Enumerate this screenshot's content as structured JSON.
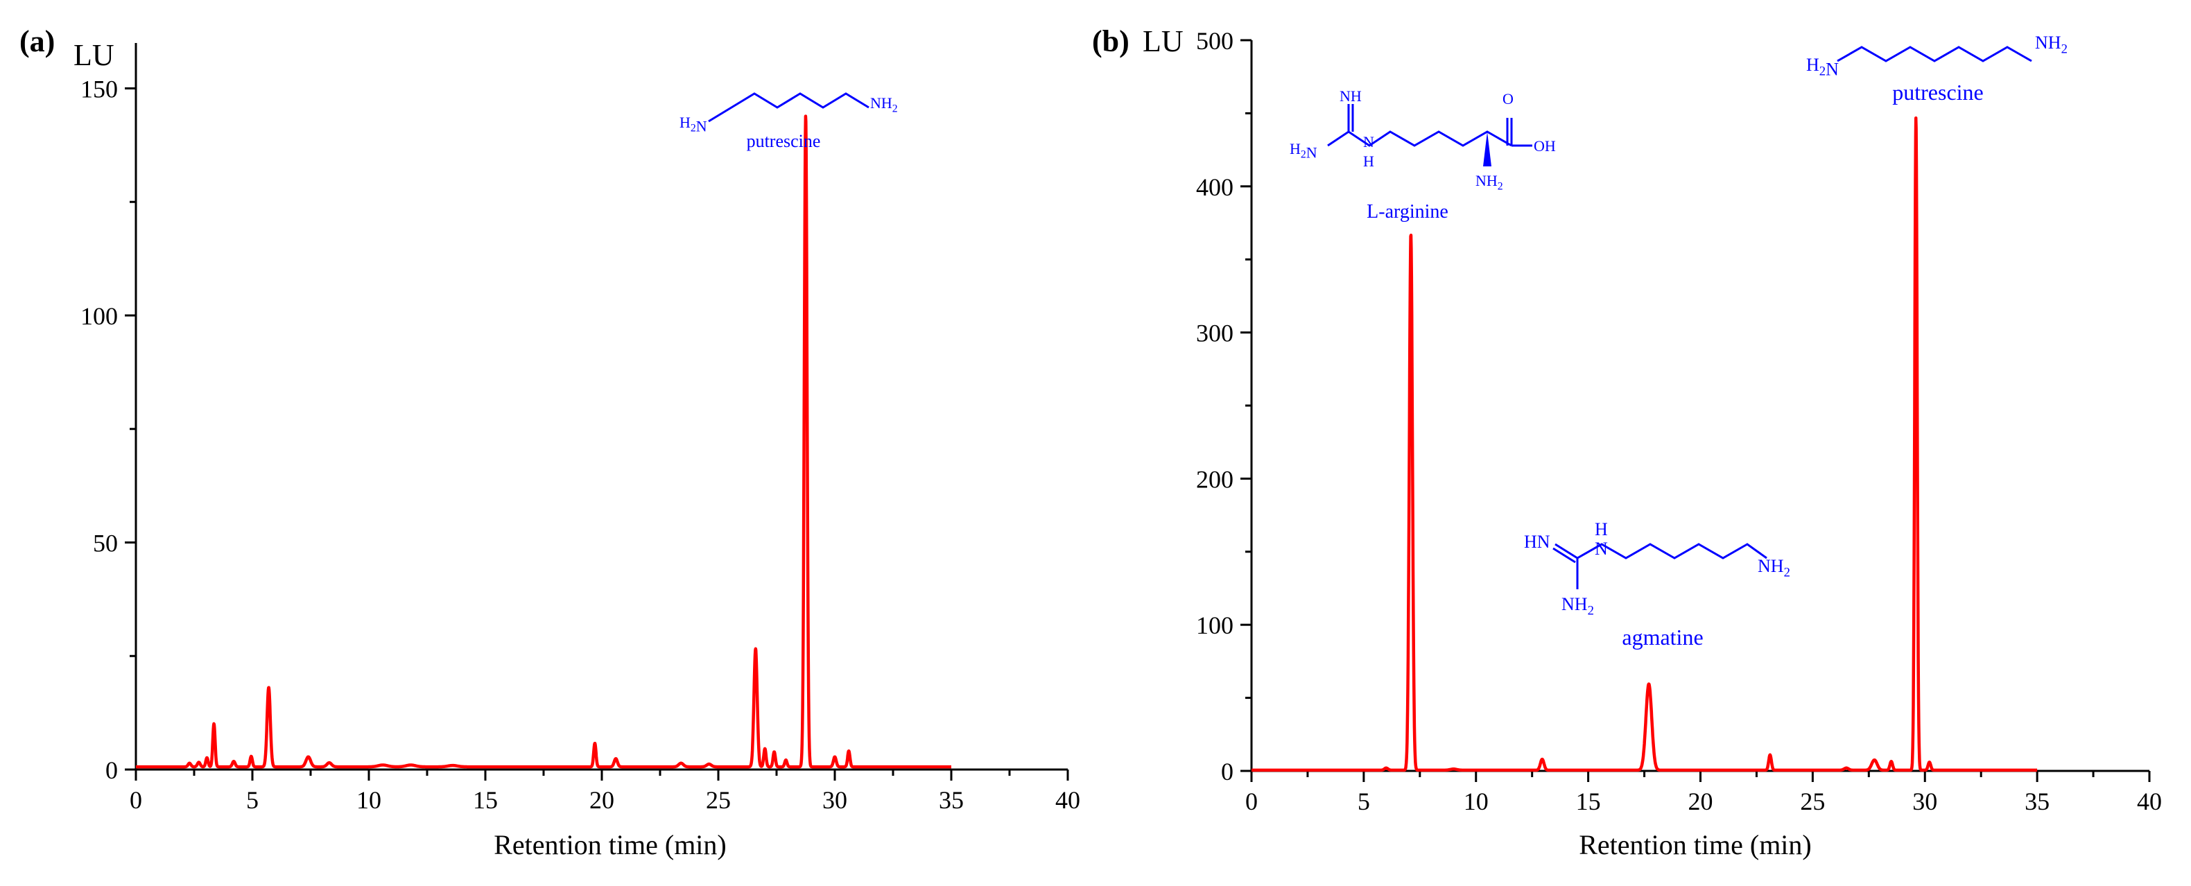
{
  "chart_data": [
    {
      "type": "line",
      "panel_label": "(a)",
      "y_unit": "LU",
      "xlabel": "Retention time (min)",
      "xlim": [
        0,
        40
      ],
      "ylim": [
        0,
        160
      ],
      "x_ticks": [
        0,
        5,
        10,
        15,
        20,
        25,
        30,
        35,
        40
      ],
      "y_ticks": [
        0,
        50,
        100,
        150
      ],
      "color": "#ff0000",
      "baseline": 0.6,
      "peaks": [
        {
          "x": 2.3,
          "y": 0.8,
          "w": 0.06
        },
        {
          "x": 2.7,
          "y": 1.0,
          "w": 0.06
        },
        {
          "x": 3.05,
          "y": 2.0,
          "w": 0.05
        },
        {
          "x": 3.35,
          "y": 9.5,
          "w": 0.05
        },
        {
          "x": 4.2,
          "y": 1.2,
          "w": 0.06
        },
        {
          "x": 4.95,
          "y": 2.3,
          "w": 0.05
        },
        {
          "x": 5.7,
          "y": 17.5,
          "w": 0.07
        },
        {
          "x": 7.4,
          "y": 2.2,
          "w": 0.1
        },
        {
          "x": 8.3,
          "y": 0.9,
          "w": 0.1
        },
        {
          "x": 10.6,
          "y": 0.4,
          "w": 0.2
        },
        {
          "x": 11.8,
          "y": 0.4,
          "w": 0.2
        },
        {
          "x": 13.6,
          "y": 0.3,
          "w": 0.2
        },
        {
          "x": 19.7,
          "y": 5.2,
          "w": 0.05
        },
        {
          "x": 20.6,
          "y": 1.8,
          "w": 0.07
        },
        {
          "x": 23.4,
          "y": 0.8,
          "w": 0.1
        },
        {
          "x": 24.6,
          "y": 0.6,
          "w": 0.1
        },
        {
          "x": 26.6,
          "y": 26.0,
          "w": 0.07
        },
        {
          "x": 27.0,
          "y": 4.0,
          "w": 0.05
        },
        {
          "x": 27.4,
          "y": 3.3,
          "w": 0.05
        },
        {
          "x": 27.9,
          "y": 1.5,
          "w": 0.05
        },
        {
          "x": 28.75,
          "y": 143.5,
          "w": 0.06
        },
        {
          "x": 30.0,
          "y": 2.2,
          "w": 0.06
        },
        {
          "x": 30.6,
          "y": 3.5,
          "w": 0.05
        }
      ],
      "x_end": 35,
      "annotations": [
        {
          "name": "putrescine",
          "x": 28.75,
          "y": 143.5
        }
      ]
    },
    {
      "type": "line",
      "panel_label": "(b)",
      "y_unit": "LU",
      "xlabel": "Retention time (min)",
      "xlim": [
        0,
        40
      ],
      "ylim": [
        0,
        500
      ],
      "x_ticks": [
        0,
        5,
        10,
        15,
        20,
        25,
        30,
        35,
        40
      ],
      "y_ticks": [
        0,
        100,
        200,
        300,
        400,
        500
      ],
      "color": "#ff0000",
      "baseline": 0.5,
      "peaks": [
        {
          "x": 6.0,
          "y": 1.5,
          "w": 0.08
        },
        {
          "x": 7.1,
          "y": 367.0,
          "w": 0.07
        },
        {
          "x": 9.0,
          "y": 0.8,
          "w": 0.15
        },
        {
          "x": 12.95,
          "y": 7.5,
          "w": 0.08
        },
        {
          "x": 17.7,
          "y": 59.0,
          "w": 0.13
        },
        {
          "x": 23.1,
          "y": 10.5,
          "w": 0.06
        },
        {
          "x": 26.5,
          "y": 1.5,
          "w": 0.1
        },
        {
          "x": 27.75,
          "y": 7.0,
          "w": 0.12
        },
        {
          "x": 28.5,
          "y": 6.0,
          "w": 0.06
        },
        {
          "x": 29.6,
          "y": 446.5,
          "w": 0.055
        },
        {
          "x": 30.2,
          "y": 5.5,
          "w": 0.06
        }
      ],
      "x_end": 35,
      "annotations": [
        {
          "name": "L-arginine",
          "x": 7.1,
          "y": 367.0
        },
        {
          "name": "agmatine",
          "x": 17.7,
          "y": 59.0
        },
        {
          "name": "putrescine",
          "x": 29.6,
          "y": 446.5
        }
      ]
    }
  ],
  "molecules": {
    "a_putrescine": {
      "left": "H2N",
      "right": "NH2",
      "name": "putrescine"
    },
    "b_arginine": {
      "nh": "NH",
      "h2n": "H2N",
      "n": "N",
      "h": "H",
      "o": "O",
      "oh": "OH",
      "nh2": "NH2",
      "name": "L-arginine"
    },
    "b_agmatine": {
      "hn": "HN",
      "h": "H",
      "n": "N",
      "nh2_left": "NH2",
      "nh2_right": "NH2",
      "name": "agmatine"
    },
    "b_putrescine": {
      "left": "H2N",
      "right": "NH2",
      "name": "putrescine"
    }
  }
}
